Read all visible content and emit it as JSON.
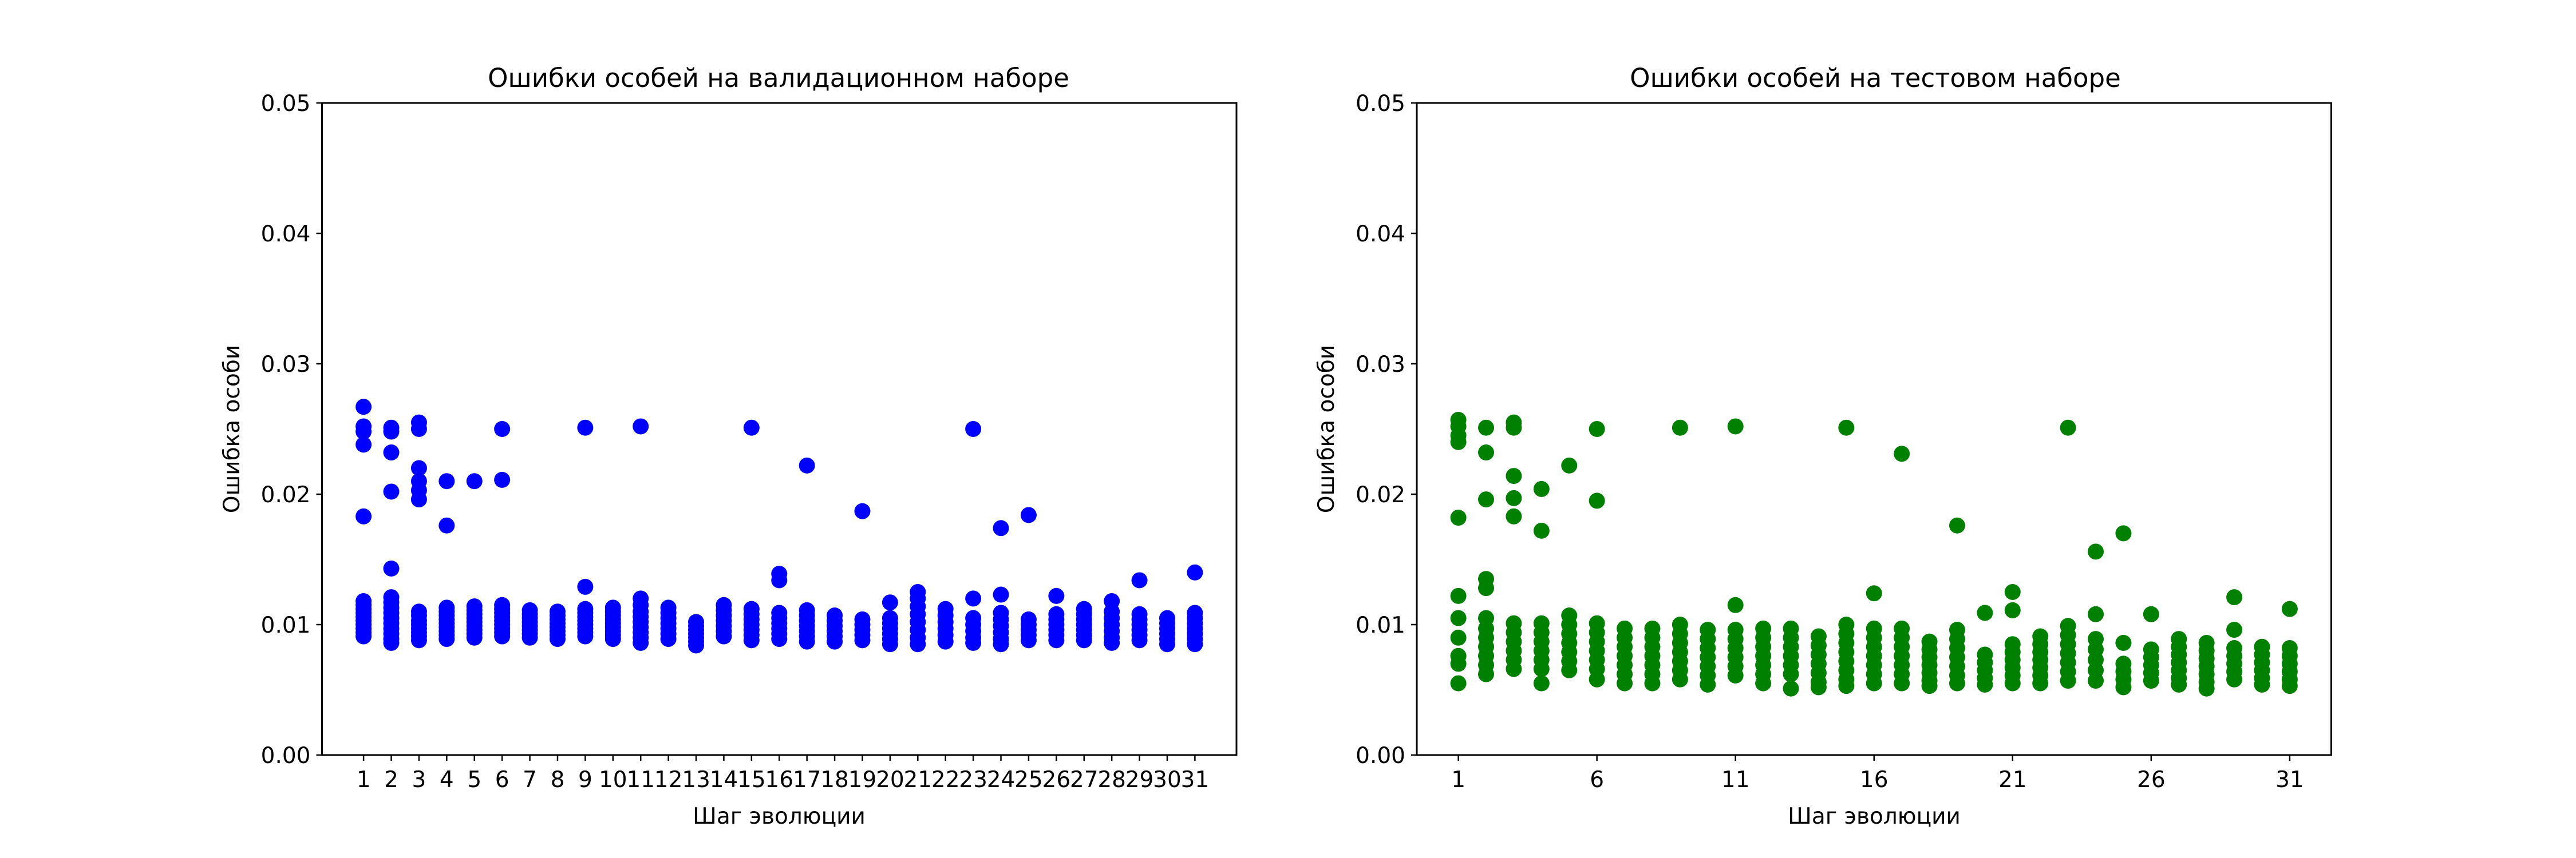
{
  "chart_data": [
    {
      "type": "scatter",
      "title": "Ошибки особей на валидационном наборе",
      "xlabel": "Шаг эволюции",
      "ylabel": "Ошибка особи",
      "ylim": [
        0,
        0.05
      ],
      "yticks": [
        "0.00",
        "0.01",
        "0.02",
        "0.03",
        "0.04",
        "0.05"
      ],
      "xlim": [
        -0.5,
        32.5
      ],
      "xticks": [
        1,
        2,
        3,
        4,
        5,
        6,
        7,
        8,
        9,
        10,
        11,
        12,
        13,
        14,
        15,
        16,
        17,
        18,
        19,
        20,
        21,
        22,
        23,
        24,
        25,
        26,
        27,
        28,
        29,
        30,
        31
      ],
      "color": "#0000ff",
      "series": [
        {
          "x": 1,
          "values": [
            0.0267,
            0.0252,
            0.0248,
            0.0238,
            0.0183,
            0.0118,
            0.0115,
            0.0112,
            0.0109,
            0.0106,
            0.0103,
            0.01,
            0.0097,
            0.0094,
            0.0091
          ]
        },
        {
          "x": 2,
          "values": [
            0.0251,
            0.0248,
            0.0232,
            0.0202,
            0.0143,
            0.0121,
            0.0117,
            0.0113,
            0.0109,
            0.0105,
            0.0101,
            0.0097,
            0.0093,
            0.0089,
            0.0086
          ]
        },
        {
          "x": 3,
          "values": [
            0.0255,
            0.025,
            0.022,
            0.021,
            0.0203,
            0.0196,
            0.011,
            0.0107,
            0.0103,
            0.01,
            0.0097,
            0.0094,
            0.0091,
            0.0088
          ]
        },
        {
          "x": 4,
          "values": [
            0.021,
            0.0176,
            0.0113,
            0.011,
            0.0107,
            0.0104,
            0.0101,
            0.0098,
            0.0095,
            0.0092,
            0.0089
          ]
        },
        {
          "x": 5,
          "values": [
            0.021,
            0.0114,
            0.0111,
            0.0108,
            0.0105,
            0.0102,
            0.0099,
            0.0096,
            0.0093,
            0.009
          ]
        },
        {
          "x": 6,
          "values": [
            0.025,
            0.0211,
            0.0115,
            0.0112,
            0.0109,
            0.0106,
            0.0103,
            0.01,
            0.0097,
            0.0094,
            0.0091
          ]
        },
        {
          "x": 7,
          "values": [
            0.0111,
            0.0108,
            0.0105,
            0.0102,
            0.0099,
            0.0096,
            0.0093,
            0.009
          ]
        },
        {
          "x": 8,
          "values": [
            0.011,
            0.0107,
            0.0104,
            0.0101,
            0.0098,
            0.0095,
            0.0092,
            0.0089
          ]
        },
        {
          "x": 9,
          "values": [
            0.0251,
            0.0129,
            0.0112,
            0.0109,
            0.0106,
            0.0103,
            0.01,
            0.0097,
            0.0094,
            0.0091
          ]
        },
        {
          "x": 10,
          "values": [
            0.0113,
            0.011,
            0.0107,
            0.0104,
            0.0101,
            0.0098,
            0.0095,
            0.0092,
            0.0089
          ]
        },
        {
          "x": 11,
          "values": [
            0.0252,
            0.012,
            0.0115,
            0.011,
            0.0106,
            0.0102,
            0.0098,
            0.0094,
            0.009,
            0.0086
          ]
        },
        {
          "x": 12,
          "values": [
            0.0113,
            0.0109,
            0.0105,
            0.0101,
            0.0097,
            0.0093,
            0.0089
          ]
        },
        {
          "x": 13,
          "values": [
            0.0102,
            0.0099,
            0.0096,
            0.0093,
            0.009,
            0.0087,
            0.0084
          ]
        },
        {
          "x": 14,
          "values": [
            0.0115,
            0.0111,
            0.0107,
            0.0103,
            0.0099,
            0.0095,
            0.0091
          ]
        },
        {
          "x": 15,
          "values": [
            0.0251,
            0.0112,
            0.0108,
            0.0104,
            0.01,
            0.0096,
            0.0092,
            0.0088
          ]
        },
        {
          "x": 16,
          "values": [
            0.0139,
            0.0134,
            0.0109,
            0.0105,
            0.0101,
            0.0097,
            0.0093,
            0.0089
          ]
        },
        {
          "x": 17,
          "values": [
            0.0222,
            0.0111,
            0.0107,
            0.0103,
            0.0099,
            0.0095,
            0.0091,
            0.0087
          ]
        },
        {
          "x": 18,
          "values": [
            0.0107,
            0.0103,
            0.0099,
            0.0095,
            0.0091,
            0.0087
          ]
        },
        {
          "x": 19,
          "values": [
            0.0187,
            0.0104,
            0.01,
            0.0096,
            0.0092,
            0.0088
          ]
        },
        {
          "x": 20,
          "values": [
            0.0117,
            0.0105,
            0.0101,
            0.0097,
            0.0093,
            0.0089,
            0.0085
          ]
        },
        {
          "x": 21,
          "values": [
            0.0125,
            0.012,
            0.0114,
            0.0108,
            0.0102,
            0.0096,
            0.009,
            0.0085
          ]
        },
        {
          "x": 22,
          "values": [
            0.0112,
            0.0107,
            0.0102,
            0.0097,
            0.0092,
            0.0087
          ]
        },
        {
          "x": 23,
          "values": [
            0.025,
            0.012,
            0.0105,
            0.01,
            0.0095,
            0.009,
            0.0086
          ]
        },
        {
          "x": 24,
          "values": [
            0.0174,
            0.0123,
            0.0109,
            0.0104,
            0.0099,
            0.0094,
            0.0089,
            0.0085
          ]
        },
        {
          "x": 25,
          "values": [
            0.0184,
            0.0104,
            0.01,
            0.0096,
            0.0092,
            0.0088
          ]
        },
        {
          "x": 26,
          "values": [
            0.0122,
            0.0108,
            0.0104,
            0.01,
            0.0096,
            0.0092,
            0.0088
          ]
        },
        {
          "x": 27,
          "values": [
            0.0112,
            0.0108,
            0.0104,
            0.01,
            0.0096,
            0.0092,
            0.0088
          ]
        },
        {
          "x": 28,
          "values": [
            0.0118,
            0.011,
            0.0105,
            0.01,
            0.0095,
            0.009,
            0.0086
          ]
        },
        {
          "x": 29,
          "values": [
            0.0134,
            0.0108,
            0.0104,
            0.01,
            0.0096,
            0.0092,
            0.0088
          ]
        },
        {
          "x": 30,
          "values": [
            0.0105,
            0.0101,
            0.0097,
            0.0093,
            0.0089,
            0.0085
          ]
        },
        {
          "x": 31,
          "values": [
            0.014,
            0.0109,
            0.0105,
            0.0101,
            0.0097,
            0.0093,
            0.0089,
            0.0085
          ]
        }
      ]
    },
    {
      "type": "scatter",
      "title": "Ошибки особей на тестовом наборе",
      "xlabel": "Шаг эволюции",
      "ylabel": "Ошибка особи",
      "ylim": [
        0,
        0.05
      ],
      "yticks": [
        "0.00",
        "0.01",
        "0.02",
        "0.03",
        "0.04",
        "0.05"
      ],
      "xlim": [
        -0.5,
        32.5
      ],
      "xticks": [
        1,
        6,
        11,
        16,
        21,
        26,
        31
      ],
      "color": "#008000",
      "series": [
        {
          "x": 1,
          "values": [
            0.0257,
            0.0252,
            0.0245,
            0.024,
            0.0182,
            0.0122,
            0.0105,
            0.009,
            0.0076,
            0.007,
            0.0055
          ]
        },
        {
          "x": 2,
          "values": [
            0.0251,
            0.0232,
            0.0196,
            0.0135,
            0.0128,
            0.0105,
            0.0097,
            0.009,
            0.0083,
            0.0076,
            0.0069,
            0.0062
          ]
        },
        {
          "x": 3,
          "values": [
            0.0255,
            0.0251,
            0.0214,
            0.0197,
            0.0183,
            0.0101,
            0.0094,
            0.0087,
            0.008,
            0.0073,
            0.0066
          ]
        },
        {
          "x": 4,
          "values": [
            0.0204,
            0.0172,
            0.0101,
            0.0094,
            0.0087,
            0.008,
            0.0073,
            0.0066,
            0.0055
          ]
        },
        {
          "x": 5,
          "values": [
            0.0222,
            0.0107,
            0.01,
            0.0093,
            0.0086,
            0.0079,
            0.0072,
            0.0065
          ]
        },
        {
          "x": 6,
          "values": [
            0.025,
            0.0195,
            0.0101,
            0.0094,
            0.0087,
            0.008,
            0.0073,
            0.0066,
            0.0058
          ]
        },
        {
          "x": 7,
          "values": [
            0.0097,
            0.009,
            0.0083,
            0.0076,
            0.0069,
            0.0062,
            0.0055
          ]
        },
        {
          "x": 8,
          "values": [
            0.0097,
            0.009,
            0.0083,
            0.0076,
            0.0069,
            0.0062,
            0.0055
          ]
        },
        {
          "x": 9,
          "values": [
            0.0251,
            0.01,
            0.0093,
            0.0086,
            0.0079,
            0.0072,
            0.0065,
            0.0058
          ]
        },
        {
          "x": 10,
          "values": [
            0.0096,
            0.0089,
            0.0082,
            0.0075,
            0.0068,
            0.0061,
            0.0054
          ]
        },
        {
          "x": 11,
          "values": [
            0.0252,
            0.0115,
            0.0096,
            0.0089,
            0.0082,
            0.0075,
            0.0068,
            0.0061
          ]
        },
        {
          "x": 12,
          "values": [
            0.0097,
            0.009,
            0.0083,
            0.0076,
            0.0069,
            0.0062,
            0.0055
          ]
        },
        {
          "x": 13,
          "values": [
            0.0097,
            0.009,
            0.0083,
            0.0076,
            0.0069,
            0.0062,
            0.0051
          ]
        },
        {
          "x": 14,
          "values": [
            0.0091,
            0.0084,
            0.0077,
            0.007,
            0.0063,
            0.0056,
            0.0052
          ]
        },
        {
          "x": 15,
          "values": [
            0.0251,
            0.01,
            0.0093,
            0.0086,
            0.0079,
            0.0072,
            0.0065,
            0.0058,
            0.0053
          ]
        },
        {
          "x": 16,
          "values": [
            0.0124,
            0.0097,
            0.009,
            0.0083,
            0.0076,
            0.0069,
            0.0062,
            0.0055
          ]
        },
        {
          "x": 17,
          "values": [
            0.0231,
            0.0097,
            0.009,
            0.0083,
            0.0076,
            0.0069,
            0.0062,
            0.0055
          ]
        },
        {
          "x": 18,
          "values": [
            0.0087,
            0.0081,
            0.0075,
            0.0069,
            0.0063,
            0.0057,
            0.0053
          ]
        },
        {
          "x": 19,
          "values": [
            0.0176,
            0.0096,
            0.0089,
            0.0082,
            0.0075,
            0.0068,
            0.0061,
            0.0055
          ]
        },
        {
          "x": 20,
          "values": [
            0.0109,
            0.0077,
            0.0071,
            0.0065,
            0.0059,
            0.0054
          ]
        },
        {
          "x": 21,
          "values": [
            0.0125,
            0.0111,
            0.0085,
            0.0079,
            0.0073,
            0.0067,
            0.0061,
            0.0055
          ]
        },
        {
          "x": 22,
          "values": [
            0.0091,
            0.0085,
            0.0079,
            0.0073,
            0.0067,
            0.0061,
            0.0055
          ]
        },
        {
          "x": 23,
          "values": [
            0.0251,
            0.0099,
            0.0092,
            0.0085,
            0.0078,
            0.0071,
            0.0064,
            0.0057
          ]
        },
        {
          "x": 24,
          "values": [
            0.0156,
            0.0108,
            0.0089,
            0.0081,
            0.0073,
            0.0065,
            0.0057
          ]
        },
        {
          "x": 25,
          "values": [
            0.017,
            0.0086,
            0.007,
            0.0064,
            0.0058,
            0.0052
          ]
        },
        {
          "x": 26,
          "values": [
            0.0108,
            0.0081,
            0.0075,
            0.0069,
            0.0063,
            0.0057
          ]
        },
        {
          "x": 27,
          "values": [
            0.0089,
            0.0083,
            0.0077,
            0.0071,
            0.0065,
            0.0059,
            0.0054
          ]
        },
        {
          "x": 28,
          "values": [
            0.0086,
            0.008,
            0.0074,
            0.0068,
            0.0062,
            0.0056,
            0.0051
          ]
        },
        {
          "x": 29,
          "values": [
            0.0121,
            0.0096,
            0.0082,
            0.0076,
            0.007,
            0.0064,
            0.0058
          ]
        },
        {
          "x": 30,
          "values": [
            0.0083,
            0.0077,
            0.0071,
            0.0065,
            0.0059,
            0.0054
          ]
        },
        {
          "x": 31,
          "values": [
            0.0112,
            0.0082,
            0.0076,
            0.007,
            0.0064,
            0.0058,
            0.0053
          ]
        }
      ]
    }
  ]
}
